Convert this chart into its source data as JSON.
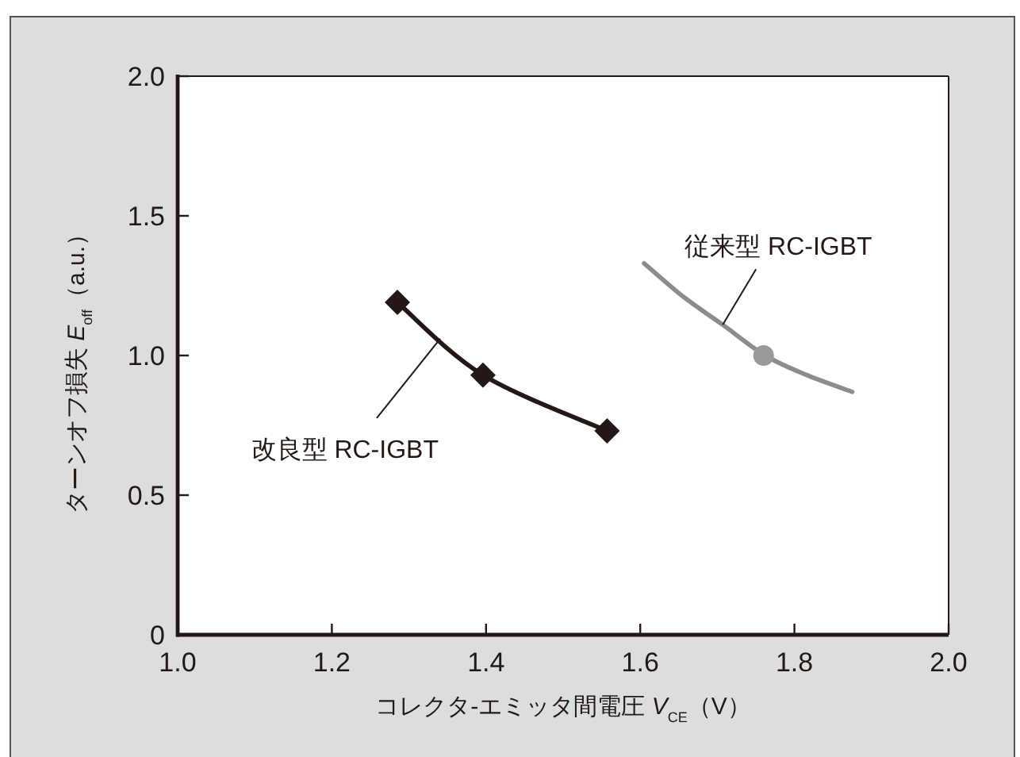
{
  "chart_data": {
    "type": "line",
    "xlabel": "コレクタ-エミッタ間電圧 *V*$_{CE}$（V）",
    "ylabel": "ターンオフ損失 *E*$_{off}$（a.u.）",
    "xlim": [
      1,
      2
    ],
    "xticks": [
      {
        "value": 1,
        "label": "1.0"
      },
      1.2,
      1.4,
      1.6,
      1.8,
      {
        "value": 2,
        "label": "2.0"
      }
    ],
    "ylim": [
      0,
      2
    ],
    "yticks": [
      0,
      0.5,
      {
        "value": 1,
        "label": "1.0"
      },
      1.5,
      {
        "value": 2,
        "label": "2.0"
      }
    ],
    "series": [
      {
        "name": "改良型 RC-IGBT",
        "color": "#231815",
        "marker": "diamond",
        "x": [
          1.285,
          1.396,
          1.557
        ],
        "values": [
          1.19,
          0.93,
          0.73
        ]
      },
      {
        "name": "従来型 RC-IGBT",
        "color": "#8c8c8c",
        "marker": "none",
        "x": [
          1.605,
          1.656,
          1.707,
          1.762,
          1.816,
          1.875
        ],
        "values": [
          1.33,
          1.21,
          1.11,
          1.0,
          0.93,
          0.87
        ]
      },
      {
        "type": "scatter",
        "color": "#999999",
        "marker": "circle",
        "x": [
          1.76
        ],
        "values": [
          1.0
        ]
      }
    ]
  }
}
